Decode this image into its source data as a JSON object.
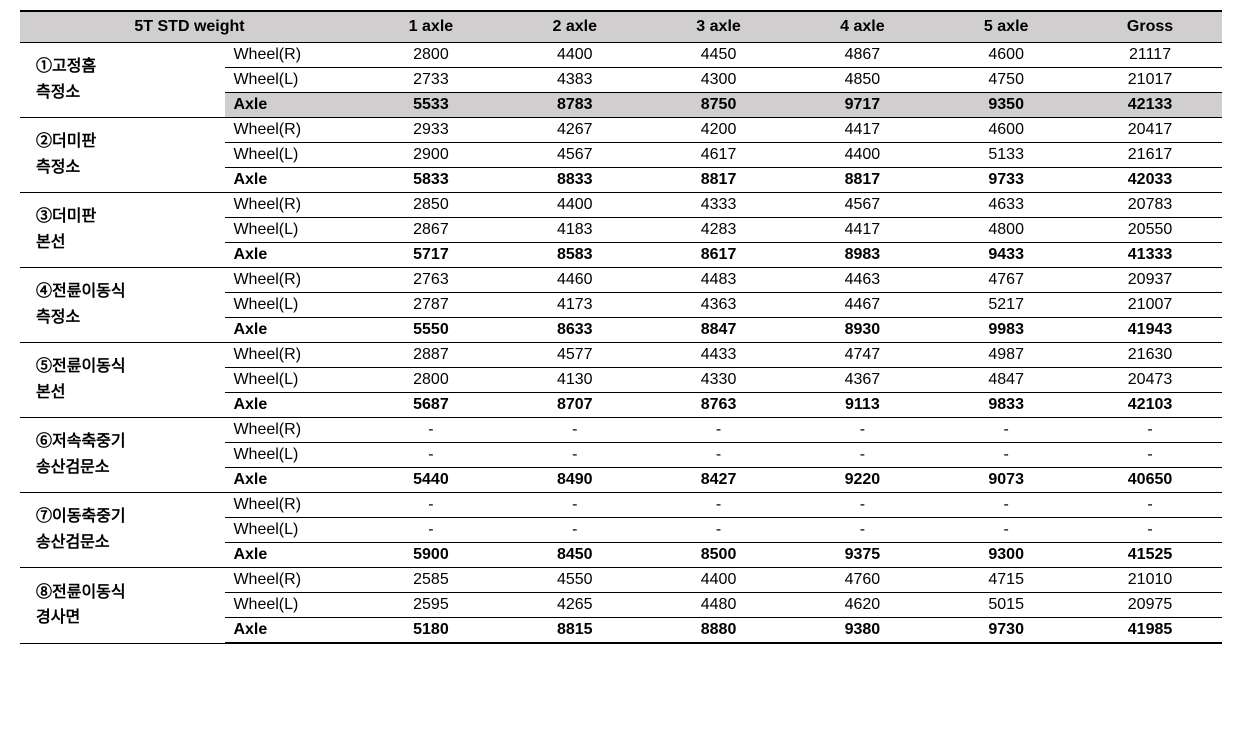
{
  "header": {
    "title": "5T  STD  weight",
    "columns": [
      "1  axle",
      "2  axle",
      "3  axle",
      "4  axle",
      "5  axle",
      "Gross"
    ]
  },
  "rowTypes": {
    "wheelR": "Wheel(R)",
    "wheelL": "Wheel(L)",
    "axle": "Axle"
  },
  "sections": [
    {
      "label": "①고정홈\n측정소",
      "shaded": true,
      "rows": {
        "wheelR": [
          "2800",
          "4400",
          "4450",
          "4867",
          "4600",
          "21117"
        ],
        "wheelL": [
          "2733",
          "4383",
          "4300",
          "4850",
          "4750",
          "21017"
        ],
        "axle": [
          "5533",
          "8783",
          "8750",
          "9717",
          "9350",
          "42133"
        ]
      }
    },
    {
      "label": "②더미판\n측정소",
      "shaded": false,
      "rows": {
        "wheelR": [
          "2933",
          "4267",
          "4200",
          "4417",
          "4600",
          "20417"
        ],
        "wheelL": [
          "2900",
          "4567",
          "4617",
          "4400",
          "5133",
          "21617"
        ],
        "axle": [
          "5833",
          "8833",
          "8817",
          "8817",
          "9733",
          "42033"
        ]
      }
    },
    {
      "label": "③더미판\n본선",
      "shaded": false,
      "rows": {
        "wheelR": [
          "2850",
          "4400",
          "4333",
          "4567",
          "4633",
          "20783"
        ],
        "wheelL": [
          "2867",
          "4183",
          "4283",
          "4417",
          "4800",
          "20550"
        ],
        "axle": [
          "5717",
          "8583",
          "8617",
          "8983",
          "9433",
          "41333"
        ]
      }
    },
    {
      "label": "④전륜이동식\n측정소",
      "shaded": false,
      "rows": {
        "wheelR": [
          "2763",
          "4460",
          "4483",
          "4463",
          "4767",
          "20937"
        ],
        "wheelL": [
          "2787",
          "4173",
          "4363",
          "4467",
          "5217",
          "21007"
        ],
        "axle": [
          "5550",
          "8633",
          "8847",
          "8930",
          "9983",
          "41943"
        ]
      }
    },
    {
      "label": "⑤전륜이동식\n본선",
      "shaded": false,
      "rows": {
        "wheelR": [
          "2887",
          "4577",
          "4433",
          "4747",
          "4987",
          "21630"
        ],
        "wheelL": [
          "2800",
          "4130",
          "4330",
          "4367",
          "4847",
          "20473"
        ],
        "axle": [
          "5687",
          "8707",
          "8763",
          "9113",
          "9833",
          "42103"
        ]
      }
    },
    {
      "label": "⑥저속축중기\n송산검문소",
      "shaded": false,
      "rows": {
        "wheelR": [
          "-",
          "-",
          "-",
          "-",
          "-",
          "-"
        ],
        "wheelL": [
          "-",
          "-",
          "-",
          "-",
          "-",
          "-"
        ],
        "axle": [
          "5440",
          "8490",
          "8427",
          "9220",
          "9073",
          "40650"
        ]
      }
    },
    {
      "label": "⑦이동축중기\n송산검문소",
      "shaded": false,
      "rows": {
        "wheelR": [
          "-",
          "-",
          "-",
          "-",
          "-",
          "-"
        ],
        "wheelL": [
          "-",
          "-",
          "-",
          "-",
          "-",
          "-"
        ],
        "axle": [
          "5900",
          "8450",
          "8500",
          "9375",
          "9300",
          "41525"
        ]
      }
    },
    {
      "label": "⑧전륜이동식\n경사면",
      "shaded": false,
      "rows": {
        "wheelR": [
          "2585",
          "4550",
          "4400",
          "4760",
          "4715",
          "21010"
        ],
        "wheelL": [
          "2595",
          "4265",
          "4480",
          "4620",
          "5015",
          "20975"
        ],
        "axle": [
          "5180",
          "8815",
          "8880",
          "9380",
          "9730",
          "41985"
        ]
      }
    }
  ]
}
